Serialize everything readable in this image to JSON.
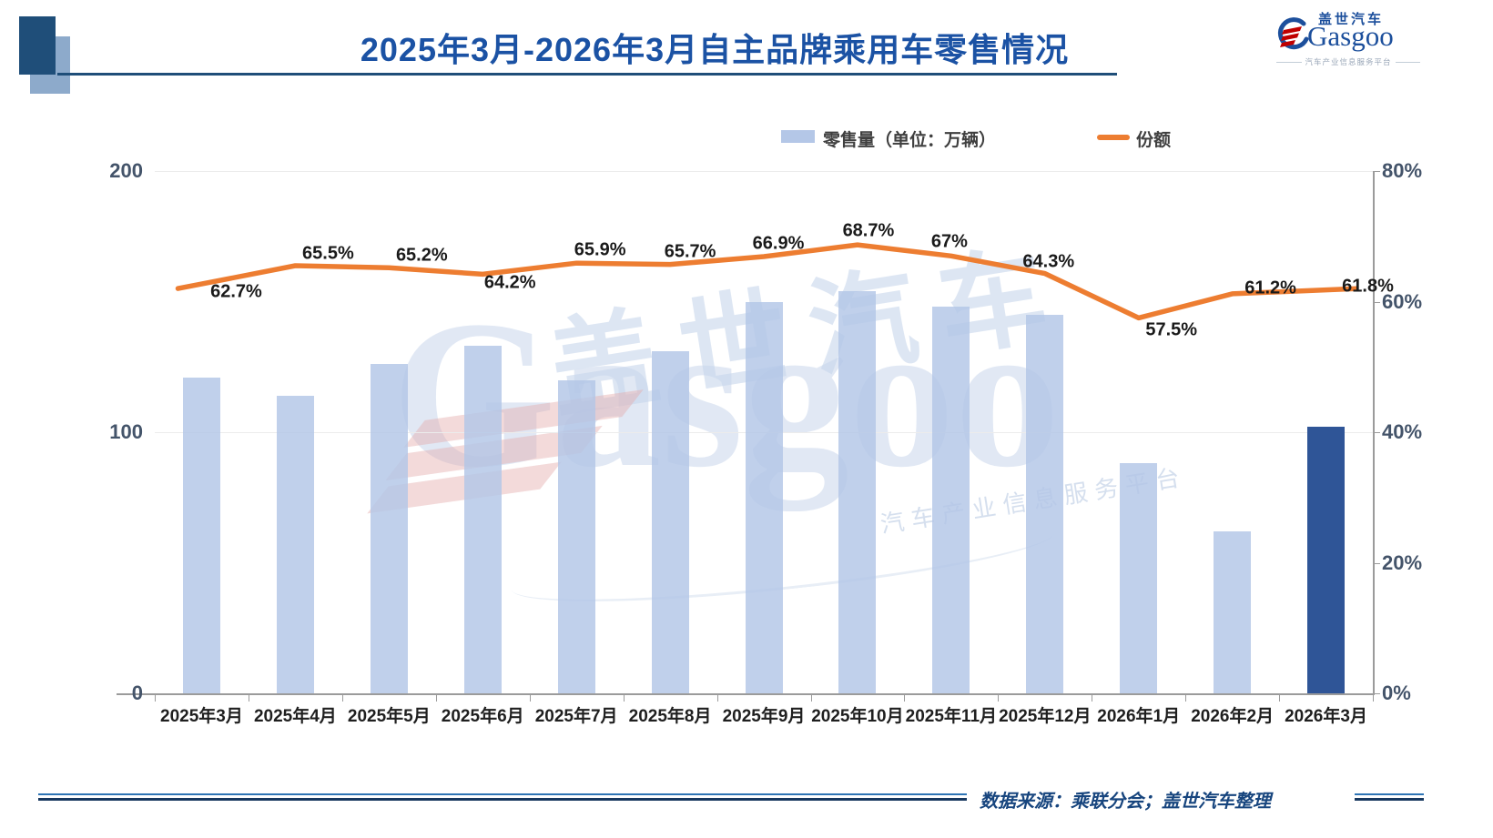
{
  "title": "2025年3月-2026年3月自主品牌乘用车零售情况",
  "logo": {
    "brand_cn": "盖世汽车",
    "brand_en": "Gasgoo",
    "tagline": "汽车产业信息服务平台"
  },
  "legend": {
    "bar_label": "零售量（单位：万辆）",
    "line_label": "份额"
  },
  "footer": {
    "source_note": "数据来源：乘联分会；盖世汽车整理"
  },
  "watermark": {
    "brand_cn": "盖世汽车",
    "brand_en": "Gasgoo",
    "tagline": "汽车产业信息服务平台"
  },
  "colors": {
    "bar": "#B4C7E7",
    "bar_highlight": "#2F5597",
    "line": "#ED7D31",
    "title_text": "#1B52A4",
    "axis_text": "#44546A",
    "accent_dark": "#1F4E79"
  },
  "chart_data": {
    "type": "bar",
    "subtype": "combo-bar-line-dual-axis",
    "categories": [
      "2025年3月",
      "2025年4月",
      "2025年5月",
      "2025年6月",
      "2025年7月",
      "2025年8月",
      "2025年9月",
      "2025年10月",
      "2025年11月",
      "2025年12月",
      "2026年1月",
      "2026年2月",
      "2026年3月"
    ],
    "series": [
      {
        "name": "零售量（单位：万辆）",
        "type": "bar",
        "axis": "left",
        "values": [
          121,
          114,
          126,
          133,
          120,
          131,
          150,
          154,
          148,
          145,
          88,
          62,
          102
        ],
        "note_values_estimated_from_pixels": true,
        "highlight_last": true
      },
      {
        "name": "份额",
        "type": "line",
        "axis": "right",
        "values": [
          62.7,
          65.5,
          65.2,
          64.2,
          65.9,
          65.7,
          66.9,
          68.7,
          67.0,
          64.3,
          57.5,
          61.2,
          61.8
        ],
        "labels": [
          "62.7%",
          "65.5%",
          "65.2%",
          "64.2%",
          "65.9%",
          "65.7%",
          "66.9%",
          "68.7%",
          "67%",
          "64.3%",
          "57.5%",
          "61.2%",
          "61.8%"
        ]
      }
    ],
    "left_axis": {
      "min": 0,
      "max": 200,
      "tick_values": [
        200,
        100,
        0
      ],
      "tick_labels": [
        "200",
        "100",
        "0"
      ]
    },
    "right_axis": {
      "min": 0,
      "max": 80,
      "tick_values": [
        80,
        60,
        40,
        20,
        0
      ],
      "tick_labels": [
        "80%",
        "60%",
        "40%",
        "20%",
        "0%"
      ]
    },
    "grid": "horizontal gridlines at left-axis 100 and 200",
    "legend_position": "top"
  }
}
